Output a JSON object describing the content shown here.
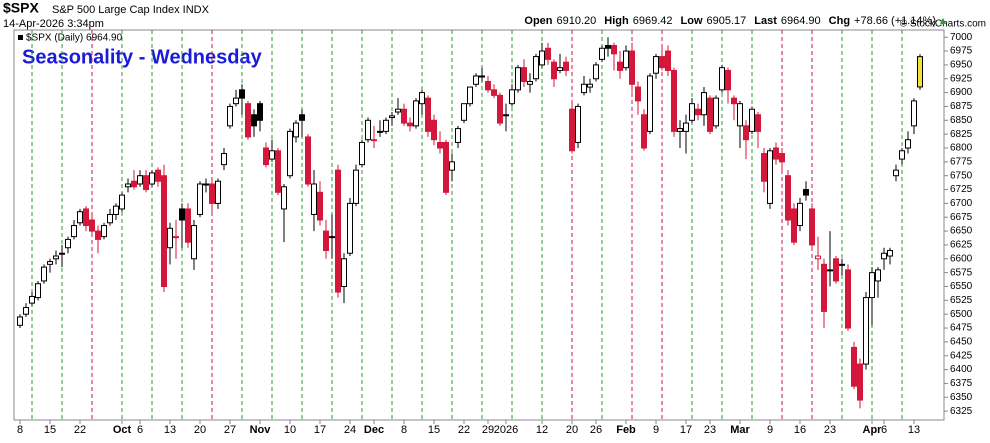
{
  "chart_data": {
    "type": "candlestick",
    "symbol": "$SPX",
    "name": "S&P 500 Large Cap Index INDX",
    "timestamp": "14-Apr-2026 3:34pm",
    "credit": "© StockCharts.com",
    "title": "Seasonality - Wednesday",
    "legend": "$SPX (Daily) 6964.90",
    "header": [
      [
        "Open",
        "6910.20"
      ],
      [
        "High",
        "6969.42"
      ],
      [
        "Low",
        "6905.17"
      ],
      [
        "Last",
        "6964.90"
      ],
      [
        "Chg",
        "+78.66 (+1.14%)"
      ]
    ],
    "ylim": [
      6309,
      7013
    ],
    "yticks": [
      6325,
      6350,
      6375,
      6400,
      6425,
      6450,
      6475,
      6500,
      6525,
      6550,
      6575,
      6600,
      6625,
      6650,
      6675,
      6700,
      6725,
      6750,
      6775,
      6800,
      6825,
      6850,
      6875,
      6900,
      6925,
      6950,
      6975,
      7000
    ],
    "up_color": "#000000",
    "down_color": "#d4173b",
    "highlight_color": "#f5e23a",
    "wed_up_color": "#2a9d2a",
    "wed_down_color": "#d4173b",
    "categories": [
      "8",
      null,
      null,
      null,
      null,
      "15",
      null,
      null,
      null,
      null,
      "22",
      null,
      null,
      null,
      null,
      null,
      null,
      "Oct",
      null,
      null,
      "6",
      null,
      null,
      null,
      null,
      "13",
      null,
      null,
      null,
      null,
      "20",
      null,
      null,
      null,
      null,
      "27",
      null,
      null,
      null,
      null,
      "Nov",
      null,
      null,
      null,
      null,
      "10",
      null,
      null,
      null,
      null,
      "17",
      null,
      null,
      null,
      null,
      "24",
      null,
      null,
      null,
      "Dec",
      null,
      null,
      null,
      null,
      "8",
      null,
      null,
      null,
      null,
      "15",
      null,
      null,
      null,
      null,
      "22",
      null,
      null,
      null,
      "29",
      null,
      null,
      "2026",
      null,
      null,
      null,
      null,
      null,
      "12",
      null,
      null,
      null,
      null,
      "20",
      null,
      null,
      null,
      "26",
      null,
      null,
      null,
      null,
      "Feb",
      null,
      null,
      null,
      null,
      "9",
      null,
      null,
      null,
      null,
      "17",
      null,
      null,
      null,
      "23",
      null,
      null,
      null,
      null,
      "Mar",
      null,
      null,
      null,
      null,
      "9",
      null,
      null,
      null,
      null,
      "16",
      null,
      null,
      null,
      null,
      "23",
      null,
      null,
      null,
      null,
      null,
      null,
      "Apr",
      null,
      "6",
      null,
      null,
      null,
      null,
      "13",
      null
    ],
    "ohlc": [
      [
        6480,
        6500,
        6475,
        6495
      ],
      [
        6500,
        6520,
        6495,
        6512
      ],
      [
        6520,
        6540,
        6515,
        6532
      ],
      [
        6530,
        6560,
        6525,
        6555
      ],
      [
        6560,
        6590,
        6555,
        6585
      ],
      [
        6590,
        6600,
        6575,
        6595
      ],
      [
        6600,
        6615,
        6590,
        6605
      ],
      [
        6610,
        6625,
        6585,
        6610
      ],
      [
        6620,
        6640,
        6610,
        6635
      ],
      [
        6640,
        6670,
        6635,
        6660
      ],
      [
        6665,
        6690,
        6660,
        6685
      ],
      [
        6690,
        6695,
        6650,
        6660
      ],
      [
        6670,
        6680,
        6640,
        6650
      ],
      [
        6650,
        6660,
        6610,
        6635
      ],
      [
        6640,
        6665,
        6635,
        6660
      ],
      [
        6665,
        6690,
        6660,
        6680
      ],
      [
        6680,
        6700,
        6670,
        6695
      ],
      [
        6690,
        6720,
        6685,
        6715
      ],
      [
        6730,
        6745,
        6720,
        6735
      ],
      [
        6740,
        6760,
        6725,
        6730
      ],
      [
        6735,
        6760,
        6730,
        6750
      ],
      [
        6750,
        6760,
        6720,
        6725
      ],
      [
        6735,
        6760,
        6730,
        6755
      ],
      [
        6760,
        6765,
        6730,
        6740
      ],
      [
        6750,
        6770,
        6540,
        6550
      ],
      [
        6620,
        6665,
        6590,
        6655
      ],
      [
        6640,
        6670,
        6600,
        6640
      ],
      [
        6690,
        6700,
        6620,
        6670
      ],
      [
        6690,
        6700,
        6620,
        6630
      ],
      [
        6600,
        6670,
        6580,
        6660
      ],
      [
        6680,
        6740,
        6675,
        6735
      ],
      [
        6735,
        6745,
        6720,
        6735
      ],
      [
        6735,
        6740,
        6680,
        6700
      ],
      [
        6700,
        6745,
        6690,
        6740
      ],
      [
        6770,
        6800,
        6760,
        6790
      ],
      [
        6840,
        6880,
        6835,
        6875
      ],
      [
        6880,
        6905,
        6875,
        6890
      ],
      [
        6905,
        6915,
        6860,
        6890
      ],
      [
        6880,
        6885,
        6815,
        6820
      ],
      [
        6860,
        6870,
        6820,
        6840
      ],
      [
        6880,
        6885,
        6830,
        6850
      ],
      [
        6800,
        6810,
        6765,
        6770
      ],
      [
        6780,
        6815,
        6775,
        6795
      ],
      [
        6795,
        6800,
        6715,
        6720
      ],
      [
        6690,
        6735,
        6630,
        6730
      ],
      [
        6750,
        6835,
        6745,
        6830
      ],
      [
        6820,
        6850,
        6810,
        6845
      ],
      [
        6860,
        6870,
        6820,
        6850
      ],
      [
        6820,
        6825,
        6730,
        6735
      ],
      [
        6680,
        6760,
        6650,
        6735
      ],
      [
        6720,
        6740,
        6660,
        6670
      ],
      [
        6650,
        6670,
        6600,
        6615
      ],
      [
        6640,
        6680,
        6600,
        6640
      ],
      [
        6760,
        6770,
        6530,
        6540
      ],
      [
        6550,
        6610,
        6520,
        6600
      ],
      [
        6610,
        6710,
        6605,
        6700
      ],
      [
        6700,
        6770,
        6695,
        6760
      ],
      [
        6770,
        6815,
        6765,
        6810
      ],
      [
        6815,
        6855,
        6810,
        6850
      ],
      [
        6815,
        6840,
        6800,
        6815
      ],
      [
        6830,
        6850,
        6820,
        6830
      ],
      [
        6830,
        6855,
        6825,
        6850
      ],
      [
        6855,
        6865,
        6840,
        6858
      ],
      [
        6865,
        6890,
        6860,
        6870
      ],
      [
        6870,
        6880,
        6840,
        6845
      ],
      [
        6845,
        6855,
        6830,
        6840
      ],
      [
        6840,
        6890,
        6835,
        6885
      ],
      [
        6880,
        6905,
        6860,
        6900
      ],
      [
        6890,
        6895,
        6820,
        6830
      ],
      [
        6850,
        6860,
        6805,
        6815
      ],
      [
        6810,
        6830,
        6790,
        6800
      ],
      [
        6810,
        6815,
        6715,
        6720
      ],
      [
        6760,
        6790,
        6740,
        6775
      ],
      [
        6810,
        6840,
        6800,
        6835
      ],
      [
        6850,
        6880,
        6845,
        6880
      ],
      [
        6880,
        6910,
        6875,
        6910
      ],
      [
        6915,
        6935,
        6910,
        6930
      ],
      [
        6930,
        6945,
        6920,
        6930
      ],
      [
        6920,
        6930,
        6900,
        6905
      ],
      [
        6905,
        6915,
        6890,
        6895
      ],
      [
        6895,
        6900,
        6840,
        6845
      ],
      [
        6860,
        6880,
        6830,
        6860
      ],
      [
        6880,
        6915,
        6875,
        6905
      ],
      [
        6905,
        6950,
        6900,
        6945
      ],
      [
        6945,
        6960,
        6910,
        6920
      ],
      [
        6915,
        6935,
        6900,
        6920
      ],
      [
        6925,
        6970,
        6920,
        6965
      ],
      [
        6950,
        6990,
        6945,
        6975
      ],
      [
        6980,
        6990,
        6950,
        6960
      ],
      [
        6955,
        6960,
        6910,
        6925
      ],
      [
        6940,
        6970,
        6935,
        6945
      ],
      [
        6955,
        6965,
        6930,
        6940
      ],
      [
        6870,
        6880,
        6790,
        6795
      ],
      [
        6810,
        6880,
        6800,
        6875
      ],
      [
        6900,
        6930,
        6895,
        6915
      ],
      [
        6910,
        6925,
        6900,
        6915
      ],
      [
        6925,
        6955,
        6920,
        6950
      ],
      [
        6960,
        6985,
        6955,
        6980
      ],
      [
        6985,
        7000,
        6965,
        6980
      ],
      [
        6985,
        6990,
        6940,
        6970
      ],
      [
        6955,
        6975,
        6925,
        6940
      ],
      [
        6945,
        6985,
        6940,
        6975
      ],
      [
        6975,
        6990,
        6900,
        6915
      ],
      [
        6910,
        6920,
        6860,
        6885
      ],
      [
        6860,
        6870,
        6795,
        6800
      ],
      [
        6830,
        6935,
        6825,
        6930
      ],
      [
        6935,
        6970,
        6925,
        6965
      ],
      [
        6965,
        6985,
        6940,
        6945
      ],
      [
        6975,
        6985,
        6930,
        6940
      ],
      [
        6940,
        6945,
        6820,
        6830
      ],
      [
        6830,
        6850,
        6800,
        6835
      ],
      [
        6830,
        6860,
        6790,
        6845
      ],
      [
        6850,
        6890,
        6845,
        6880
      ],
      [
        6870,
        6880,
        6850,
        6860
      ],
      [
        6860,
        6910,
        6840,
        6900
      ],
      [
        6890,
        6895,
        6825,
        6830
      ],
      [
        6840,
        6895,
        6835,
        6890
      ],
      [
        6905,
        6950,
        6900,
        6945
      ],
      [
        6940,
        6945,
        6880,
        6905
      ],
      [
        6890,
        6895,
        6850,
        6880
      ],
      [
        6840,
        6885,
        6800,
        6880
      ],
      [
        6840,
        6850,
        6780,
        6815
      ],
      [
        6830,
        6875,
        6825,
        6870
      ],
      [
        6860,
        6865,
        6800,
        6830
      ],
      [
        6790,
        6800,
        6720,
        6740
      ],
      [
        6700,
        6800,
        6690,
        6795
      ],
      [
        6800,
        6810,
        6770,
        6780
      ],
      [
        6790,
        6800,
        6760,
        6775
      ],
      [
        6750,
        6760,
        6660,
        6670
      ],
      [
        6690,
        6700,
        6625,
        6630
      ],
      [
        6660,
        6710,
        6650,
        6700
      ],
      [
        6725,
        6740,
        6705,
        6715
      ],
      [
        6690,
        6700,
        6620,
        6625
      ],
      [
        6600,
        6640,
        6580,
        6605
      ],
      [
        6590,
        6600,
        6475,
        6505
      ],
      [
        6580,
        6650,
        6550,
        6580
      ],
      [
        6600,
        6605,
        6555,
        6560
      ],
      [
        6590,
        6600,
        6570,
        6590
      ],
      [
        6580,
        6590,
        6470,
        6475
      ],
      [
        6440,
        6450,
        6365,
        6370
      ],
      [
        6410,
        6420,
        6330,
        6345
      ],
      [
        6410,
        6540,
        6400,
        6530
      ],
      [
        6530,
        6585,
        6480,
        6575
      ],
      [
        6560,
        6585,
        6530,
        6580
      ],
      [
        6600,
        6620,
        6580,
        6610
      ],
      [
        6605,
        6620,
        6590,
        6615
      ],
      [
        6750,
        6770,
        6740,
        6760
      ],
      [
        6780,
        6800,
        6770,
        6795
      ],
      [
        6800,
        6830,
        6790,
        6815
      ],
      [
        6840,
        6890,
        6825,
        6885
      ],
      [
        6910.2,
        6969.42,
        6905.17,
        6964.9
      ]
    ]
  }
}
